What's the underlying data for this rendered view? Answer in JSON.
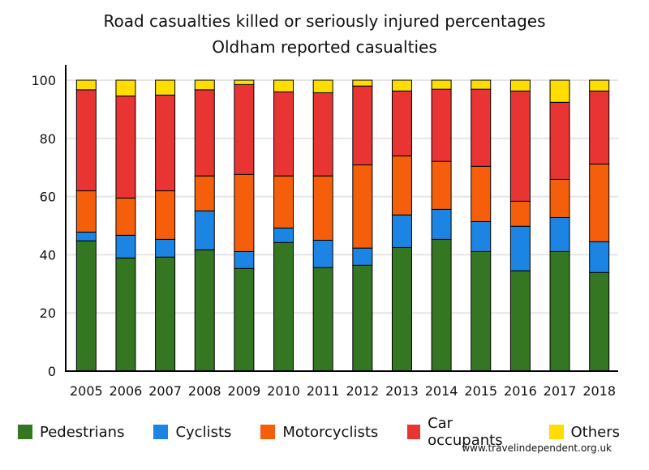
{
  "chart_data": {
    "type": "bar",
    "stacked": true,
    "title": "Road casualties killed or seriously injured percentages",
    "subtitle": "Oldham reported casualties",
    "xlabel": "",
    "ylabel": "",
    "ylim": [
      0,
      100
    ],
    "yticks": [
      0,
      20,
      40,
      60,
      80,
      100
    ],
    "grid": true,
    "legend_position": "bottom",
    "categories": [
      "2005",
      "2006",
      "2007",
      "2008",
      "2009",
      "2010",
      "2011",
      "2012",
      "2013",
      "2014",
      "2015",
      "2016",
      "2017",
      "2018"
    ],
    "series": [
      {
        "name": "Pedestrians",
        "color": "#357623",
        "values": [
          44.8,
          38.9,
          39.2,
          41.7,
          35.3,
          44.2,
          35.6,
          36.4,
          42.5,
          45.3,
          41.1,
          34.5,
          41.1,
          33.9
        ]
      },
      {
        "name": "Cyclists",
        "color": "#1c84e2",
        "values": [
          3.0,
          7.8,
          6.1,
          13.4,
          5.8,
          5.0,
          9.4,
          5.9,
          11.2,
          10.3,
          10.3,
          15.3,
          11.7,
          10.6
        ]
      },
      {
        "name": "Motorcyclists",
        "color": "#f55f0c",
        "values": [
          14.2,
          12.8,
          16.7,
          12.0,
          26.5,
          17.9,
          22.1,
          28.6,
          20.3,
          16.5,
          19.0,
          8.6,
          13.1,
          26.7
        ]
      },
      {
        "name": "Car occupants",
        "color": "#e93434",
        "values": [
          34.7,
          35.1,
          32.9,
          29.6,
          30.9,
          28.9,
          28.6,
          27.1,
          22.3,
          24.8,
          26.5,
          37.9,
          26.5,
          25.1
        ]
      },
      {
        "name": "Others",
        "color": "#ffdd00",
        "values": [
          3.3,
          5.4,
          5.1,
          3.3,
          1.5,
          4.0,
          4.3,
          2.0,
          3.7,
          3.1,
          3.1,
          3.7,
          7.6,
          3.7
        ]
      }
    ]
  },
  "credit": "www.travelindependent.org.uk"
}
